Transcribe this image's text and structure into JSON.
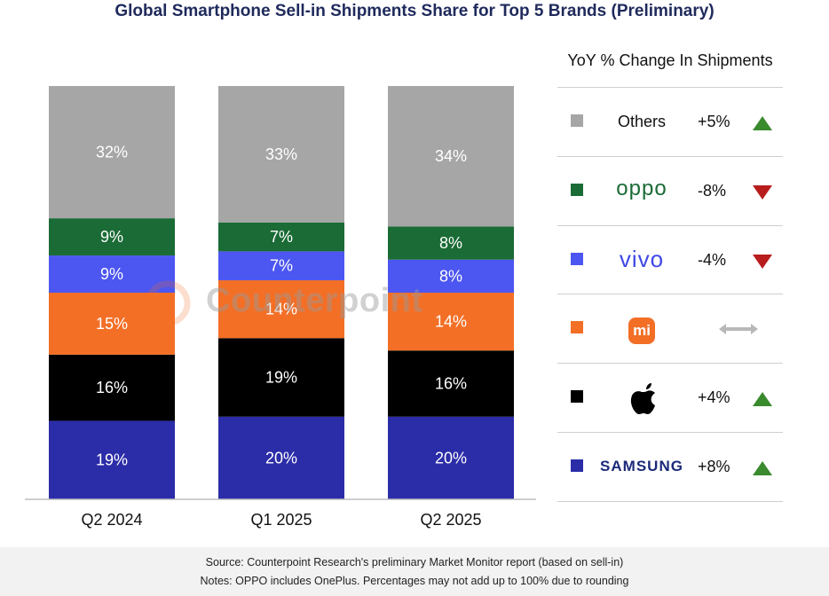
{
  "chart_data": {
    "type": "bar",
    "stacked": true,
    "title": "Global Smartphone Sell-in Shipments Share for Top 5 Brands (Preliminary)",
    "categories": [
      "Q2 2024",
      "Q1 2025",
      "Q2 2025"
    ],
    "series": [
      {
        "name": "Samsung",
        "color": "#2b2ca8",
        "values": [
          19,
          20,
          20
        ],
        "labels": [
          "19%",
          "20%",
          "20%"
        ]
      },
      {
        "name": "Apple",
        "color": "#000000",
        "values": [
          16,
          19,
          16
        ],
        "labels": [
          "16%",
          "19%",
          "16%"
        ]
      },
      {
        "name": "Xiaomi",
        "color": "#f36f26",
        "values": [
          15,
          14,
          14
        ],
        "labels": [
          "15%",
          "14%",
          "14%"
        ]
      },
      {
        "name": "vivo",
        "color": "#4c56f0",
        "values": [
          9,
          7,
          8
        ],
        "labels": [
          "9%",
          "7%",
          "8%"
        ]
      },
      {
        "name": "OPPO",
        "color": "#1a6b35",
        "values": [
          9,
          7,
          8
        ],
        "labels": [
          "9%",
          "7%",
          "8%"
        ]
      },
      {
        "name": "Others",
        "color": "#a6a6a6",
        "values": [
          32,
          33,
          34
        ],
        "labels": [
          "32%",
          "33%",
          "34%"
        ]
      }
    ],
    "ylim": [
      0,
      100
    ],
    "xlabel": "",
    "ylabel": "",
    "legend_position": "right"
  },
  "legend": {
    "title": "YoY % Change In Shipments",
    "rows": [
      {
        "brand": "Others",
        "change": "+5%",
        "direction": "up",
        "color": "#a6a6a6"
      },
      {
        "brand": "oppo",
        "change": "-8%",
        "direction": "down",
        "color": "#1a6b35"
      },
      {
        "brand": "vivo",
        "change": "-4%",
        "direction": "down",
        "color": "#4c56f0"
      },
      {
        "brand": "mi",
        "change": "",
        "direction": "flat",
        "color": "#f36f26"
      },
      {
        "brand": "Apple",
        "change": "+4%",
        "direction": "up",
        "color": "#000000"
      },
      {
        "brand": "SAMSUNG",
        "change": "+8%",
        "direction": "up",
        "color": "#2b2ca8"
      }
    ]
  },
  "watermark": "Counterpoint",
  "footer": {
    "source": "Source: Counterpoint Research's preliminary Market Monitor report (based on sell-in)",
    "notes": "Notes: OPPO includes OnePlus. Percentages may not add up to 100% due to rounding"
  },
  "colors": {
    "up": "#3a8a2e",
    "down": "#b81c1c",
    "flat": "#b8b8b8",
    "title": "#1f2a5c"
  }
}
